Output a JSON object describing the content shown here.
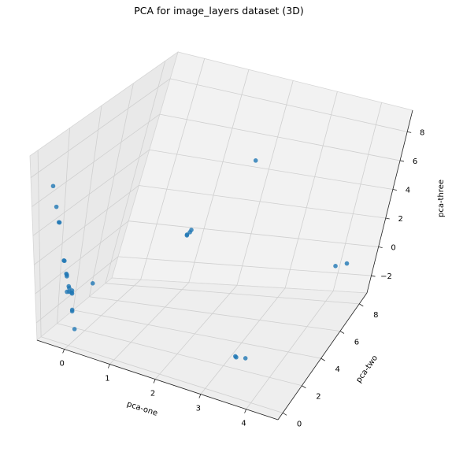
{
  "chart_data": {
    "type": "scatter",
    "projection": "3d",
    "title": "PCA for image_layers dataset (3D)",
    "xlabel": "pca-one",
    "ylabel": "pca-two",
    "zlabel": "pca-three",
    "xlim": [
      -0.6,
      4.7
    ],
    "ylim": [
      -0.5,
      8.8
    ],
    "zlim": [
      -3.2,
      9.5
    ],
    "xticks": [
      "0",
      "1",
      "2",
      "3",
      "4"
    ],
    "yticks": [
      "0",
      "2",
      "4",
      "6",
      "8"
    ],
    "zticks": [
      "−2",
      "0",
      "2",
      "4",
      "6",
      "8"
    ],
    "grid": true,
    "series": [
      {
        "color": "#1f77b4",
        "points": [
          {
            "x": -0.3,
            "y": 0.05,
            "z": 7.3
          },
          {
            "x": -0.25,
            "y": 0.1,
            "z": 5.9
          },
          {
            "x": -0.2,
            "y": 0.1,
            "z": 4.9
          },
          {
            "x": -0.2,
            "y": 0.15,
            "z": 4.85
          },
          {
            "x": -0.1,
            "y": 0.1,
            "z": 2.4
          },
          {
            "x": -0.1,
            "y": 0.15,
            "z": 2.35
          },
          {
            "x": -0.05,
            "y": 0.1,
            "z": 1.55
          },
          {
            "x": -0.05,
            "y": 0.15,
            "z": 1.45
          },
          {
            "x": -0.05,
            "y": 0.15,
            "z": 1.35
          },
          {
            "x": 0.0,
            "y": 0.1,
            "z": 0.75
          },
          {
            "x": 0.0,
            "y": 0.15,
            "z": 0.6
          },
          {
            "x": 0.0,
            "y": 0.15,
            "z": 0.35
          },
          {
            "x": 0.05,
            "y": 0.15,
            "z": 0.35
          },
          {
            "x": -0.05,
            "y": 0.15,
            "z": 0.3
          },
          {
            "x": 0.05,
            "y": 0.2,
            "z": 0.45
          },
          {
            "x": 0.05,
            "y": 0.2,
            "z": 0.25
          },
          {
            "x": 0.5,
            "y": 0.2,
            "z": 1.35
          },
          {
            "x": 0.05,
            "y": 0.2,
            "z": -0.85
          },
          {
            "x": 0.05,
            "y": 0.2,
            "z": -0.95
          },
          {
            "x": 0.1,
            "y": 0.2,
            "z": -2.1
          },
          {
            "x": 1.05,
            "y": 6.6,
            "z": 0.95
          },
          {
            "x": 1.05,
            "y": 6.6,
            "z": 0.9
          },
          {
            "x": 1.08,
            "y": 6.7,
            "z": 1.05
          },
          {
            "x": 1.1,
            "y": 6.7,
            "z": 1.2
          },
          {
            "x": 3.25,
            "y": 1.95,
            "z": -2.35
          },
          {
            "x": 3.27,
            "y": 1.95,
            "z": -2.4
          },
          {
            "x": 3.45,
            "y": 2.05,
            "z": -2.4
          },
          {
            "x": 1.8,
            "y": 8.2,
            "z": 4.85
          },
          {
            "x": 4.35,
            "y": 6.1,
            "z": 0.95
          },
          {
            "x": 4.55,
            "y": 6.25,
            "z": 1.1
          }
        ]
      }
    ]
  }
}
